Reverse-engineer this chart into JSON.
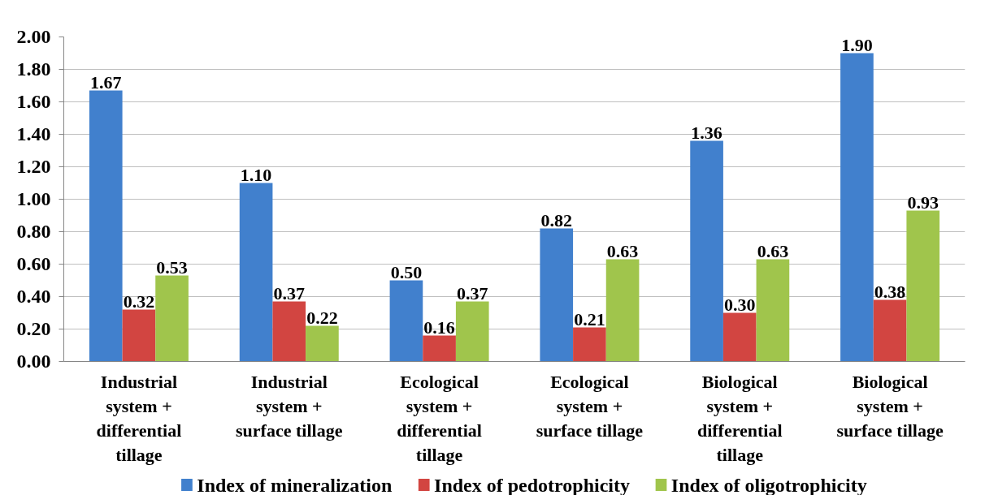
{
  "chart_data": {
    "type": "bar",
    "categories": [
      "Industrial system + differential tillage",
      "Industrial system + surface tillage",
      "Ecological system + differential tillage",
      "Ecological system + surface tillage",
      "Biological system + differential tillage",
      "Biological system + surface tillage"
    ],
    "series": [
      {
        "name": "Index of mineralization",
        "color": "#4180cd",
        "values": [
          1.67,
          1.1,
          0.5,
          0.82,
          1.36,
          1.9
        ],
        "value_labels": [
          "1.67",
          "1.10",
          "0.50",
          "0.82",
          "1.36",
          "1.90"
        ]
      },
      {
        "name": "Index of pedotrophicity",
        "color": "#d24541",
        "values": [
          0.32,
          0.37,
          0.16,
          0.21,
          0.3,
          0.38
        ],
        "value_labels": [
          "0.32",
          "0.37",
          "0.16",
          "0.21",
          "0.30",
          "0.38"
        ]
      },
      {
        "name": "Index of oligotrophicity",
        "color": "#a0c54c",
        "values": [
          0.53,
          0.22,
          0.37,
          0.63,
          0.63,
          0.93
        ],
        "value_labels": [
          "0.53",
          "0.22",
          "0.37",
          "0.63",
          "0.63",
          "0.93"
        ]
      }
    ],
    "ylim": [
      0,
      2.0
    ],
    "yticks": [
      {
        "value": 0,
        "label": "0.00"
      },
      {
        "value": 0.2,
        "label": "0.20"
      },
      {
        "value": 0.4,
        "label": "0.40"
      },
      {
        "value": 0.6,
        "label": "0.60"
      },
      {
        "value": 0.8,
        "label": "0.80"
      },
      {
        "value": 1.0,
        "label": "1.00"
      },
      {
        "value": 1.2,
        "label": "1.20"
      },
      {
        "value": 1.4,
        "label": "1.40"
      },
      {
        "value": 1.6,
        "label": "1.60"
      },
      {
        "value": 1.8,
        "label": "1.80"
      },
      {
        "value": 2.0,
        "label": "2.00"
      }
    ],
    "grid": "y",
    "legend": "bottom"
  }
}
